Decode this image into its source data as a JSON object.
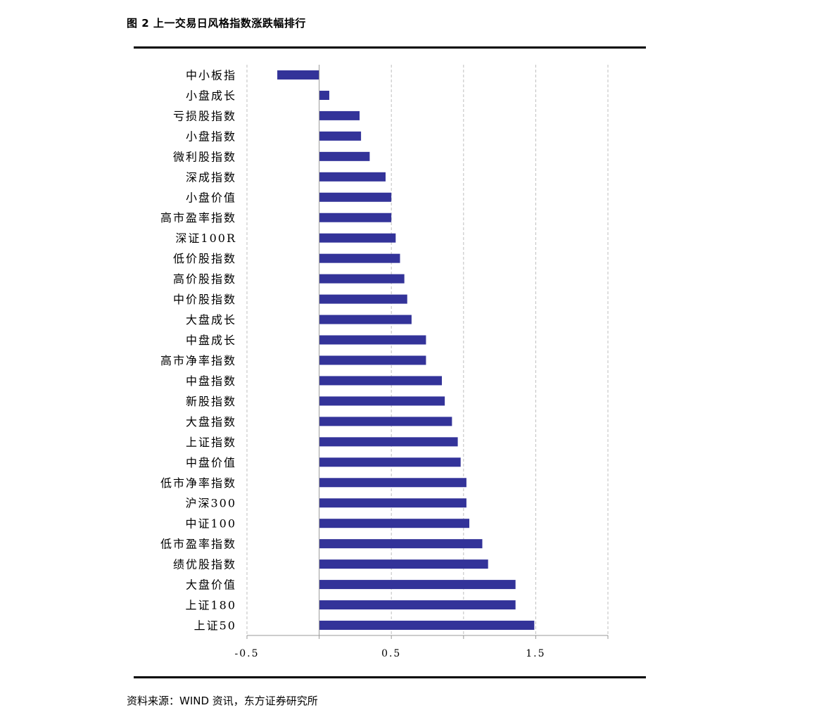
{
  "figure": {
    "title": "图 2  上一交易日风格指数涨跌幅排行",
    "source": "资料来源：WIND 资讯，东方证券研究所"
  },
  "colors": {
    "bar": "#333399",
    "grid": "#bfbfbf",
    "axis": "#999999",
    "rule": "#000000"
  },
  "chart_data": {
    "type": "bar",
    "orientation": "horizontal",
    "categories": [
      "中小板指",
      "小盘成长",
      "亏损股指数",
      "小盘指数",
      "微利股指数",
      "深成指数",
      "小盘价值",
      "高市盈率指数",
      "深证100R",
      "低价股指数",
      "高价股指数",
      "中价股指数",
      "大盘成长",
      "中盘成长",
      "高市净率指数",
      "中盘指数",
      "新股指数",
      "大盘指数",
      "上证指数",
      "中盘价值",
      "低市净率指数",
      "沪深300",
      "中证100",
      "低市盈率指数",
      "绩优股指数",
      "大盘价值",
      "上证180",
      "上证50"
    ],
    "values": [
      -0.29,
      0.07,
      0.28,
      0.29,
      0.35,
      0.46,
      0.5,
      0.5,
      0.53,
      0.56,
      0.59,
      0.61,
      0.64,
      0.74,
      0.74,
      0.85,
      0.87,
      0.92,
      0.96,
      0.98,
      1.02,
      1.02,
      1.04,
      1.13,
      1.17,
      1.36,
      1.36,
      1.49
    ],
    "xlim": [
      -0.5,
      2.0
    ],
    "xticks": [
      -0.5,
      0.5,
      1.5
    ],
    "xtick_labels": [
      "-0.5",
      "0.5",
      "1.5"
    ],
    "grid": "vertical dashed",
    "legend": "none"
  }
}
